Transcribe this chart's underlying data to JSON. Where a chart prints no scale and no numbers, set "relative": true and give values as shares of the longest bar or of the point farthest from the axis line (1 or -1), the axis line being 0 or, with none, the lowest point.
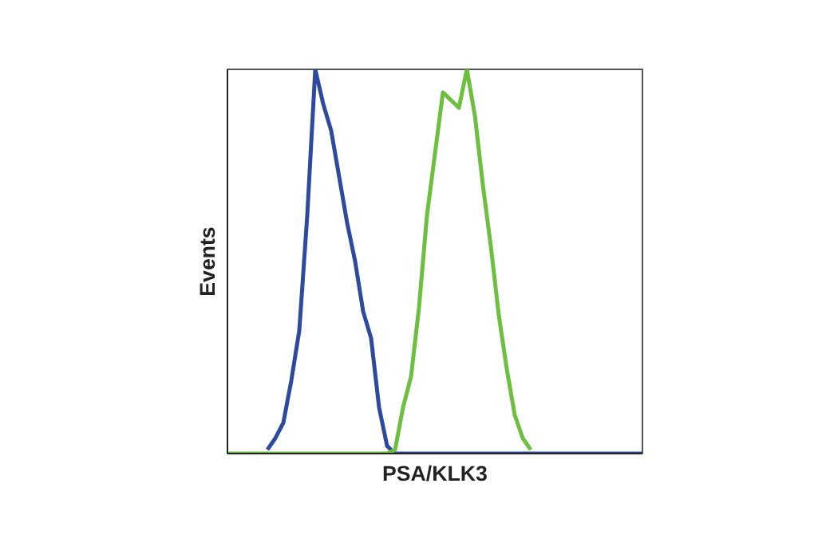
{
  "chart_data": {
    "type": "line",
    "relative": true,
    "xlabel": "PSA/KLK3",
    "ylabel": "Events",
    "categories": [
      null,
      null,
      null,
      null,
      null,
      null,
      null,
      null,
      null,
      null,
      null,
      null,
      null,
      null,
      null,
      null,
      null,
      null,
      null,
      null,
      null,
      null,
      null,
      null,
      null,
      null,
      null,
      null,
      null,
      null,
      null,
      null,
      null,
      null,
      null,
      null,
      null,
      null,
      null,
      null,
      null,
      null,
      null,
      null,
      null,
      null,
      null,
      null,
      null,
      null,
      null,
      null,
      null
    ],
    "series": [
      {
        "color": "#2e4a9e",
        "values": [
          null,
          null,
          null,
          null,
          null,
          0.01,
          0.04,
          0.08,
          0.19,
          0.32,
          0.62,
          1.0,
          0.91,
          0.84,
          0.72,
          0.6,
          0.5,
          0.37,
          0.3,
          0.12,
          0.02,
          0,
          0,
          0,
          0,
          0,
          0,
          0,
          0,
          0,
          0,
          0,
          0,
          0,
          0,
          0,
          0,
          0,
          0,
          0,
          0,
          0,
          0,
          0,
          0,
          0,
          0,
          0,
          0,
          0,
          0,
          0,
          0
        ]
      },
      {
        "color": "#6cbf3f",
        "values": [
          0,
          0,
          0,
          0,
          0,
          0,
          0,
          0,
          0,
          0,
          0,
          0,
          0,
          0,
          0,
          0,
          0,
          0,
          0,
          0,
          0,
          0.01,
          0.12,
          0.2,
          0.38,
          0.62,
          0.78,
          0.94,
          0.92,
          0.9,
          1.0,
          0.88,
          0.7,
          0.54,
          0.36,
          0.22,
          0.1,
          0.04,
          0.01,
          null,
          null,
          null,
          null,
          null,
          null,
          null,
          null,
          null,
          null,
          null,
          null,
          null,
          null
        ]
      }
    ]
  }
}
